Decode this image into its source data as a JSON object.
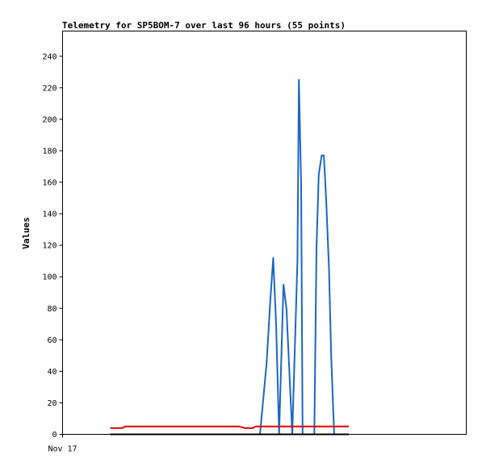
{
  "chart_data": {
    "type": "line",
    "title": "Telemetry for SP5BOM-7 over last 96 hours (55 points)",
    "xlabel": "",
    "ylabel": "Values",
    "ylim": [
      0,
      256
    ],
    "xlim": [
      0,
      55
    ],
    "x_tick_labels": [
      {
        "x": 0,
        "label": "Nov 17"
      }
    ],
    "y_ticks": [
      0,
      20,
      40,
      60,
      80,
      100,
      120,
      140,
      160,
      180,
      200,
      220,
      240
    ],
    "grid": false,
    "series": [
      {
        "color": "#1a66c8",
        "points": [
          [
            26.9,
            0
          ],
          [
            27.8,
            45
          ],
          [
            28.3,
            85
          ],
          [
            28.7,
            112
          ],
          [
            29.1,
            70
          ],
          [
            29.5,
            0
          ],
          [
            30.1,
            95
          ],
          [
            30.5,
            80
          ],
          [
            31.3,
            0
          ],
          [
            32.0,
            110
          ],
          [
            32.2,
            225
          ],
          [
            32.5,
            158
          ],
          [
            32.7,
            0
          ],
          [
            34.3,
            0
          ],
          [
            34.6,
            118
          ],
          [
            34.9,
            165
          ],
          [
            35.3,
            177
          ],
          [
            35.6,
            177
          ],
          [
            35.9,
            150
          ],
          [
            36.3,
            105
          ],
          [
            36.6,
            50
          ],
          [
            37.0,
            0
          ]
        ]
      },
      {
        "color": "#dd0000",
        "points": [
          [
            6.5,
            4
          ],
          [
            8.1,
            4
          ],
          [
            8.6,
            5
          ],
          [
            24.0,
            5
          ],
          [
            24.8,
            4
          ],
          [
            25.9,
            4
          ],
          [
            26.3,
            5
          ],
          [
            34.0,
            5
          ],
          [
            39.0,
            5
          ]
        ]
      },
      {
        "color": "#000000",
        "points": [
          [
            6.5,
            0
          ],
          [
            39.0,
            0
          ]
        ]
      }
    ]
  }
}
